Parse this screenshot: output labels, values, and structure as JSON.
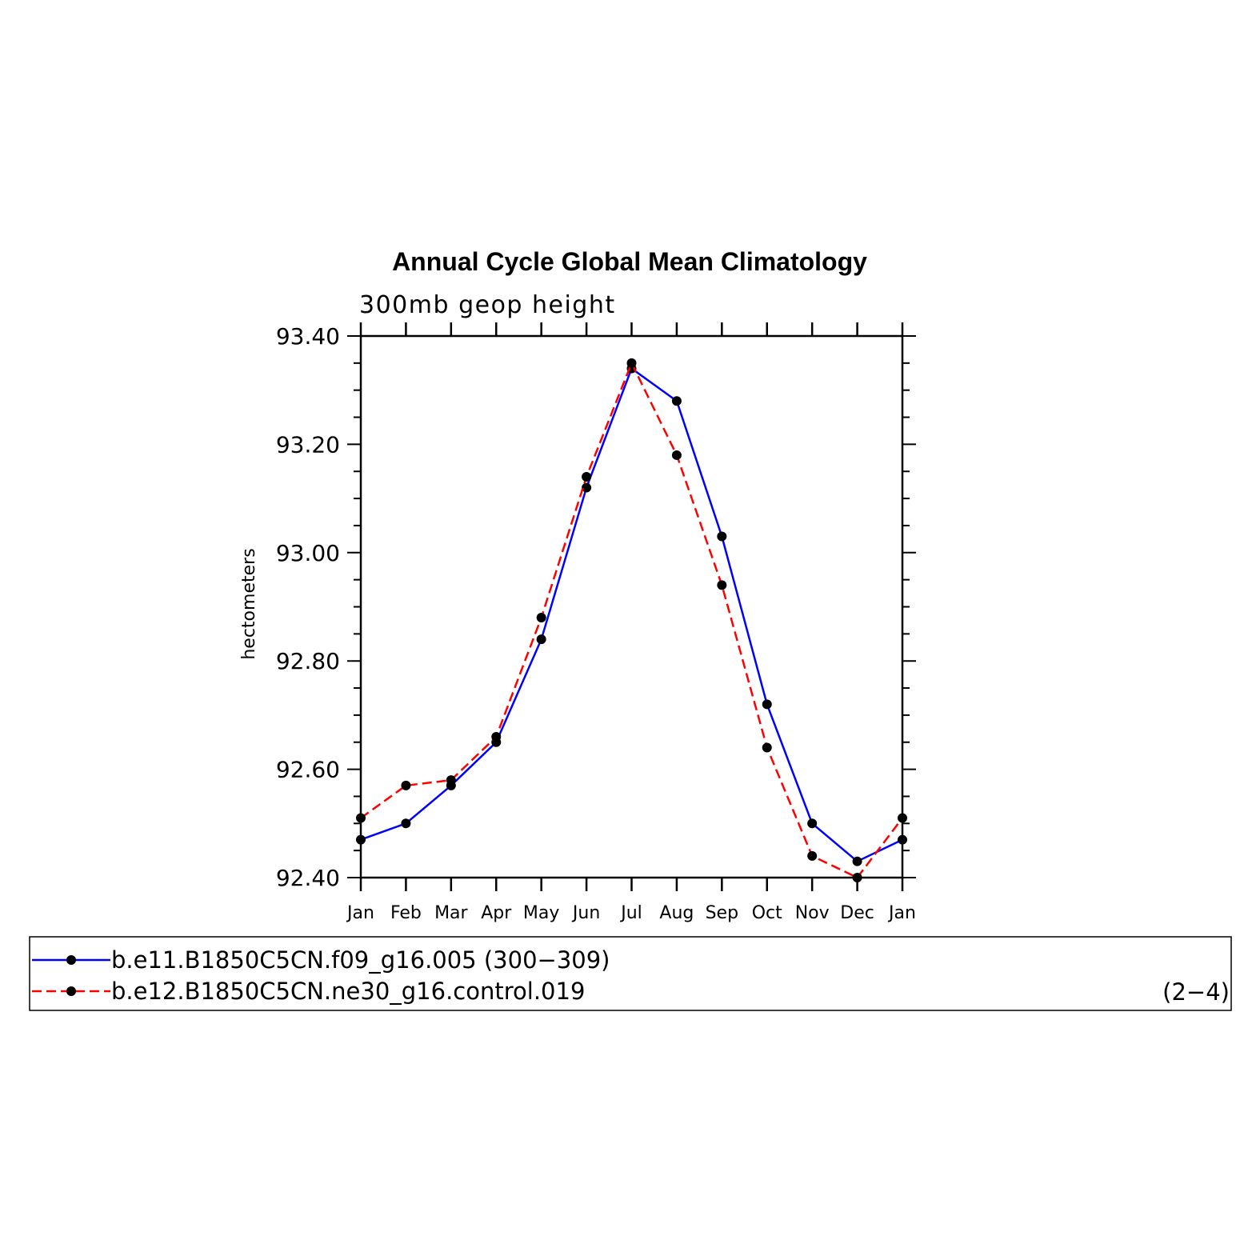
{
  "chart_data": {
    "type": "line",
    "title": "Annual Cycle Global Mean Climatology",
    "subtitle": "300mb geop height",
    "xlabel": "",
    "ylabel": "hectometers",
    "categories": [
      "Jan",
      "Feb",
      "Mar",
      "Apr",
      "May",
      "Jun",
      "Jul",
      "Aug",
      "Sep",
      "Oct",
      "Nov",
      "Dec",
      "Jan"
    ],
    "ylim": [
      92.4,
      93.4
    ],
    "yticks": [
      "92.40",
      "92.60",
      "92.80",
      "93.00",
      "93.20",
      "93.40"
    ],
    "grid": false,
    "legend_position": "bottom",
    "panel_label": "(2−4)",
    "series": [
      {
        "name": "b.e11.B1850C5CN.f09_g16.005 (300−309)",
        "color": "#0000ff",
        "dash": "solid",
        "values": [
          92.47,
          92.5,
          92.57,
          92.65,
          92.84,
          93.12,
          93.34,
          93.28,
          93.03,
          92.72,
          92.5,
          92.43,
          92.47
        ]
      },
      {
        "name": "b.e12.B1850C5CN.ne30_g16.control.019",
        "color": "#ff0000",
        "dash": "dashed",
        "values": [
          92.51,
          92.57,
          92.58,
          92.66,
          92.88,
          93.14,
          93.35,
          93.18,
          92.94,
          92.64,
          92.44,
          92.4,
          92.51
        ]
      }
    ]
  }
}
